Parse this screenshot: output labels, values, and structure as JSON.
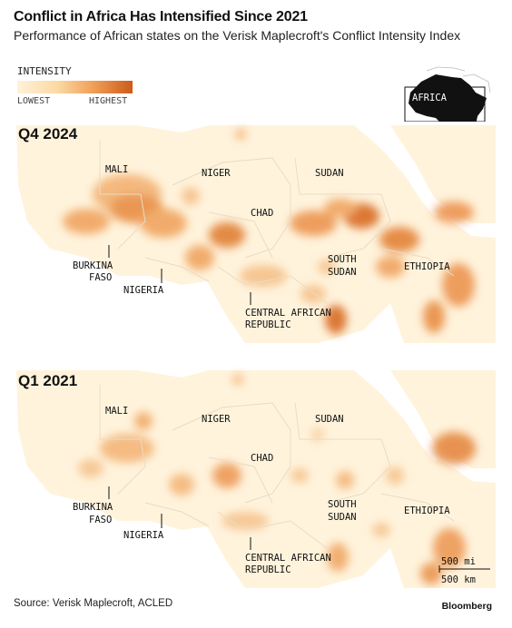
{
  "title": "Conflict in Africa Has Intensified Since 2021",
  "subtitle": "Performance of African states on the Verisk Maplecroft's Conflict Intensity Index",
  "legend": {
    "title": "INTENSITY",
    "low_label": "LOWEST",
    "high_label": "HIGHEST",
    "colors": [
      "#fff2d8",
      "#fbd9a3",
      "#f0a15a",
      "#cc5a18"
    ]
  },
  "locator": {
    "label": "AFRICA"
  },
  "panels": [
    {
      "period": "Q4 2024",
      "intensity": "higher"
    },
    {
      "period": "Q1 2021",
      "intensity": "lower"
    }
  ],
  "country_labels": {
    "mali": "MALI",
    "niger": "NIGER",
    "sudan": "SUDAN",
    "chad": "CHAD",
    "burkina_faso_1": "BURKINA",
    "burkina_faso_2": "FASO",
    "nigeria": "NIGERIA",
    "south_sudan_1": "SOUTH",
    "south_sudan_2": "SUDAN",
    "ethiopia": "ETHIOPIA",
    "car_1": "CENTRAL AFRICAN",
    "car_2": "REPUBLIC"
  },
  "scale": {
    "miles": "500 mi",
    "km": "500 km"
  },
  "source": "Source: Verisk Maplecroft, ACLED",
  "brand": "Bloomberg"
}
